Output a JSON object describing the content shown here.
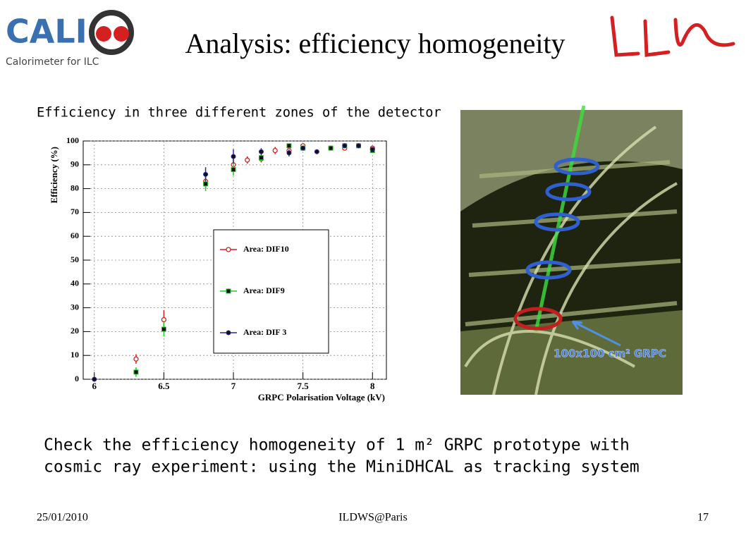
{
  "header": {
    "title": "Analysis: efficiency homogeneity",
    "logo_text": "CALI",
    "logo_caption": "Calorimeter for ILC"
  },
  "subtitle": "Efficiency in three different zones of the detector",
  "chart_data": {
    "type": "scatter",
    "xlabel": "GRPC Polarisation Voltage (kV)",
    "ylabel": "Efficiency (%)",
    "xlim": [
      5.92,
      8.1
    ],
    "xticks": [
      6,
      6.5,
      7,
      7.5,
      8
    ],
    "ylim": [
      0,
      100
    ],
    "yticks": [
      0,
      10,
      20,
      30,
      40,
      50,
      60,
      70,
      80,
      90,
      100
    ],
    "grid": true,
    "series": [
      {
        "name": "Area: DIF10",
        "color": "#d42020",
        "marker": "open-circle",
        "x": [
          6.3,
          6.5,
          6.8,
          7.0,
          7.1,
          7.2,
          7.3,
          7.4,
          7.5,
          7.7,
          7.8,
          8.0
        ],
        "values": [
          8.5,
          25,
          83,
          90,
          92,
          92.5,
          96,
          96,
          98,
          97,
          97,
          97
        ],
        "errors": [
          2,
          4,
          3,
          2.5,
          1.5,
          1.5,
          1.5,
          1.5,
          1,
          1,
          1,
          1
        ]
      },
      {
        "name": "Area: DIF9",
        "color": "#22cc22",
        "marker": "square",
        "x": [
          6.3,
          6.5,
          6.8,
          7.0,
          7.2,
          7.4,
          7.5,
          7.7,
          7.8,
          7.9,
          8.0
        ],
        "values": [
          3,
          21,
          82,
          88,
          93,
          98,
          97,
          97,
          98,
          98,
          96
        ],
        "errors": [
          2,
          3,
          3,
          2.5,
          1.5,
          1,
          1,
          1,
          1,
          1,
          1
        ]
      },
      {
        "name": "Area: DIF 3",
        "color": "#2a2aa0",
        "marker": "circle",
        "x": [
          6.0,
          6.8,
          7.0,
          7.2,
          7.4,
          7.5,
          7.6,
          7.8,
          7.9,
          8.0
        ],
        "values": [
          0,
          86,
          93.5,
          95.5,
          95,
          97,
          95.5,
          98,
          98,
          96.5
        ],
        "errors": [
          0,
          3,
          3,
          1.5,
          1.5,
          1,
          1,
          1,
          1,
          1
        ]
      }
    ]
  },
  "photo_label": "100x100 cm² GRPC",
  "body": [
    "Check the efficiency homogeneity of 1 m² GRPC prototype with",
    "cosmic ray experiment: using the MiniDHCAL as tracking system"
  ],
  "footer": {
    "date": "25/01/2010",
    "event": "ILDWS@Paris",
    "page": "17"
  }
}
